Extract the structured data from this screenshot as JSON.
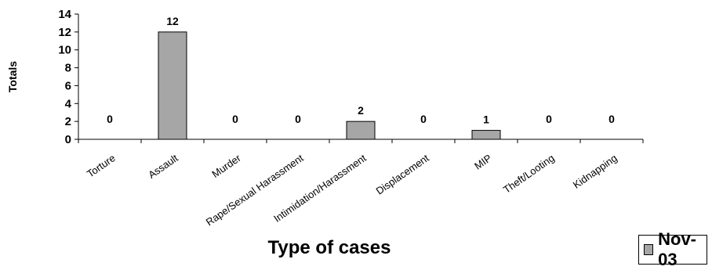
{
  "chart_data": {
    "type": "bar",
    "categories": [
      "Torture",
      "Assault",
      "Murder",
      "Rape/Sexual Harassment",
      "Intimidation/Harassment",
      "Displacement",
      "MIP",
      "Theft/Looting",
      "Kidnapping"
    ],
    "series": [
      {
        "name": "Nov-03",
        "values": [
          0,
          12,
          0,
          0,
          2,
          0,
          1,
          0,
          0
        ],
        "color": "#a6a6a6"
      }
    ],
    "xlabel": "Type of cases",
    "ylabel": "Totals",
    "ylim": [
      0,
      14
    ],
    "yticks": [
      0,
      2,
      4,
      6,
      8,
      10,
      12,
      14
    ],
    "data_labels": true,
    "grid": false,
    "legend_position": "bottom-right"
  }
}
